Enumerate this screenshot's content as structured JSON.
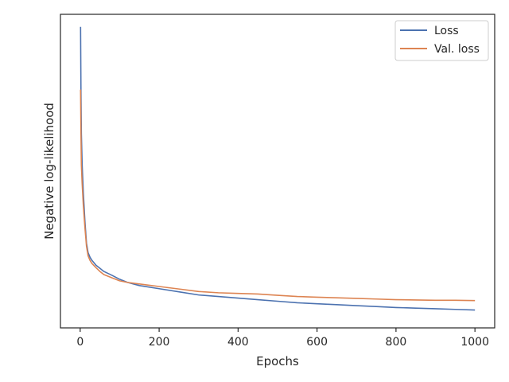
{
  "chart_data": {
    "type": "line",
    "title": "",
    "xlabel": "Epochs",
    "ylabel": "Negative log-likelihood",
    "xlim": [
      -50,
      1050
    ],
    "ylim": [
      0,
      1
    ],
    "y_tick_labels_shown": false,
    "x_ticks": [
      0,
      200,
      400,
      600,
      800,
      1000
    ],
    "x_tick_labels": [
      "0",
      "200",
      "400",
      "600",
      "800",
      "1000"
    ],
    "grid": false,
    "legend_position": "top-right",
    "series": [
      {
        "name": "Loss",
        "color": "#4c72b0",
        "x": [
          1,
          2,
          3,
          5,
          8,
          12,
          16,
          20,
          25,
          30,
          40,
          50,
          60,
          80,
          100,
          120,
          150,
          200,
          250,
          300,
          350,
          400,
          450,
          500,
          550,
          600,
          650,
          700,
          750,
          800,
          850,
          900,
          950,
          1000
        ],
        "values": [
          0.96,
          0.75,
          0.62,
          0.52,
          0.43,
          0.34,
          0.27,
          0.24,
          0.225,
          0.215,
          0.2,
          0.19,
          0.18,
          0.168,
          0.155,
          0.145,
          0.135,
          0.125,
          0.115,
          0.105,
          0.1,
          0.095,
          0.09,
          0.085,
          0.08,
          0.077,
          0.074,
          0.071,
          0.068,
          0.065,
          0.063,
          0.061,
          0.059,
          0.057
        ]
      },
      {
        "name": "Val. loss",
        "color": "#dd8452",
        "x": [
          1,
          2,
          3,
          5,
          8,
          12,
          16,
          20,
          25,
          30,
          40,
          50,
          60,
          80,
          100,
          120,
          150,
          200,
          250,
          300,
          350,
          400,
          450,
          500,
          550,
          600,
          650,
          700,
          750,
          800,
          850,
          900,
          950,
          1000
        ],
        "values": [
          0.76,
          0.62,
          0.52,
          0.46,
          0.39,
          0.32,
          0.26,
          0.23,
          0.215,
          0.205,
          0.192,
          0.18,
          0.17,
          0.16,
          0.15,
          0.145,
          0.14,
          0.132,
          0.124,
          0.116,
          0.112,
          0.11,
          0.108,
          0.104,
          0.1,
          0.098,
          0.096,
          0.094,
          0.092,
          0.09,
          0.089,
          0.088,
          0.088,
          0.087
        ]
      }
    ]
  }
}
